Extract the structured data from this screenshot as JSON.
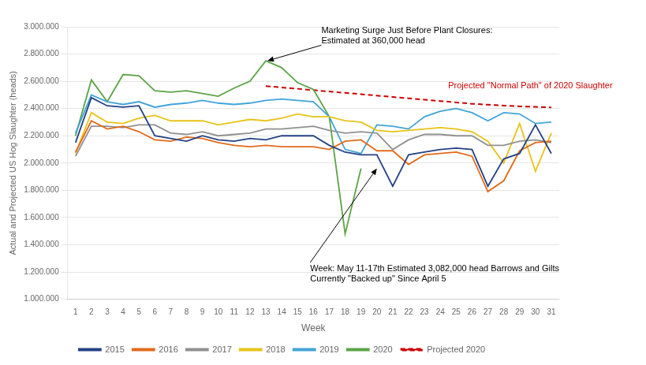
{
  "chart_data": {
    "type": "line",
    "xlabel": "Week",
    "ylabel": "Actual and Projected US Hog Slaughter (heads)",
    "x": [
      1,
      2,
      3,
      4,
      5,
      6,
      7,
      8,
      9,
      10,
      11,
      12,
      13,
      14,
      15,
      16,
      17,
      18,
      19,
      20,
      21,
      22,
      23,
      24,
      25,
      26,
      27,
      28,
      29,
      30,
      31
    ],
    "xlim": [
      0.5,
      31.5
    ],
    "xticks": [
      1,
      2,
      3,
      4,
      5,
      6,
      7,
      8,
      9,
      10,
      11,
      12,
      13,
      14,
      15,
      16,
      17,
      18,
      19,
      20,
      21,
      22,
      23,
      24,
      25,
      26,
      27,
      28,
      29,
      30,
      31
    ],
    "ylim": [
      1000000,
      3000000
    ],
    "yticks": [
      {
        "value": 1000000,
        "label": "1.000.000"
      },
      {
        "value": 1200000,
        "label": "1.200.000"
      },
      {
        "value": 1400000,
        "label": "1.400.000"
      },
      {
        "value": 1600000,
        "label": "1.600.000"
      },
      {
        "value": 1800000,
        "label": "1.800.000"
      },
      {
        "value": 2000000,
        "label": "2.000.000"
      },
      {
        "value": 2200000,
        "label": "2.200.000"
      },
      {
        "value": 2400000,
        "label": "2.400.000"
      },
      {
        "value": 2600000,
        "label": "2.600.000"
      },
      {
        "value": 2800000,
        "label": "2.800.000"
      },
      {
        "value": 3000000,
        "label": "3.000.000"
      }
    ],
    "grid": "y",
    "legend": "bottom",
    "series": [
      {
        "name": "2015",
        "color": "#244185",
        "line_style": "solid",
        "values": [
          2150000,
          2480000,
          2420000,
          2410000,
          2420000,
          2200000,
          2180000,
          2160000,
          2200000,
          2170000,
          2160000,
          2180000,
          2170000,
          2200000,
          2200000,
          2200000,
          2130000,
          2080000,
          2060000,
          2060000,
          1830000,
          2060000,
          2080000,
          2100000,
          2110000,
          2100000,
          1830000,
          2030000,
          2070000,
          2280000,
          2070000
        ]
      },
      {
        "name": "2016",
        "color": "#E26B1A",
        "line_style": "solid",
        "values": [
          2080000,
          2310000,
          2250000,
          2270000,
          2230000,
          2170000,
          2160000,
          2190000,
          2180000,
          2150000,
          2130000,
          2120000,
          2130000,
          2120000,
          2120000,
          2120000,
          2100000,
          2160000,
          2170000,
          2090000,
          2090000,
          1990000,
          2060000,
          2070000,
          2080000,
          2050000,
          1790000,
          1870000,
          2090000,
          2150000,
          2160000
        ]
      },
      {
        "name": "2017",
        "color": "#909090",
        "line_style": "solid",
        "values": [
          2050000,
          2270000,
          2270000,
          2260000,
          2280000,
          2280000,
          2220000,
          2210000,
          2230000,
          2200000,
          2210000,
          2220000,
          2250000,
          2250000,
          2260000,
          2270000,
          2240000,
          2220000,
          2230000,
          2220000,
          2100000,
          2170000,
          2210000,
          2210000,
          2200000,
          2200000,
          2130000,
          2130000,
          2160000,
          2170000,
          2150000
        ]
      },
      {
        "name": "2018",
        "color": "#E8C318",
        "line_style": "solid",
        "values": [
          2070000,
          2370000,
          2300000,
          2290000,
          2330000,
          2350000,
          2310000,
          2310000,
          2310000,
          2280000,
          2300000,
          2320000,
          2310000,
          2330000,
          2360000,
          2340000,
          2340000,
          2310000,
          2300000,
          2240000,
          2230000,
          2240000,
          2250000,
          2260000,
          2250000,
          2230000,
          2160000,
          2000000,
          2290000,
          1940000,
          2220000
        ]
      },
      {
        "name": "2019",
        "color": "#41A4D8",
        "line_style": "solid",
        "values": [
          2220000,
          2500000,
          2450000,
          2430000,
          2450000,
          2410000,
          2430000,
          2440000,
          2460000,
          2440000,
          2430000,
          2440000,
          2460000,
          2470000,
          2460000,
          2450000,
          2340000,
          2100000,
          2070000,
          2280000,
          2270000,
          2250000,
          2340000,
          2380000,
          2400000,
          2370000,
          2310000,
          2370000,
          2360000,
          2290000,
          2300000
        ]
      },
      {
        "name": "2020",
        "color": "#5BA446",
        "line_style": "solid",
        "values": [
          2200000,
          2610000,
          2450000,
          2650000,
          2640000,
          2530000,
          2520000,
          2530000,
          2510000,
          2490000,
          2550000,
          2600000,
          2750000,
          2700000,
          2590000,
          2540000,
          2340000,
          1480000,
          1960000,
          null,
          null,
          null,
          null,
          null,
          null,
          null,
          null,
          null,
          null,
          null,
          null
        ]
      },
      {
        "name": "Projected 2020",
        "color": "#CC0000",
        "line_style": "dashed",
        "values": [
          null,
          null,
          null,
          null,
          null,
          null,
          null,
          null,
          null,
          null,
          null,
          null,
          2565000,
          2555000,
          2545000,
          2535000,
          2525000,
          2515000,
          2505000,
          2495000,
          2485000,
          2475000,
          2465000,
          2455000,
          2445000,
          2435000,
          2428000,
          2422000,
          2416000,
          2412000,
          2408000
        ]
      }
    ],
    "annotations": [
      {
        "text": "Marketing Surge Just Before Plant Closures:\nEstimated at 360,000 head",
        "x": 13.1,
        "y": 2750000,
        "text_x": 16.5,
        "text_y": 2865000,
        "text_anchor": "bottom",
        "arrow": true
      },
      {
        "text": "Week: May 11-17th Estimated 3,082,000 head Barrows and Gilts\nCurrently \"Backed up\" Since April 5",
        "x": 20.0,
        "y": 1960000,
        "text_x": 15.8,
        "text_y": 1270000,
        "text_anchor": "top",
        "arrow": true
      },
      {
        "text": "Projected \"Normal Path\" of 2020 Slaughter",
        "text_x": 24.5,
        "text_y": 2535000,
        "text_anchor": "bottom",
        "color": "#CC0000",
        "arrow": false
      }
    ]
  }
}
